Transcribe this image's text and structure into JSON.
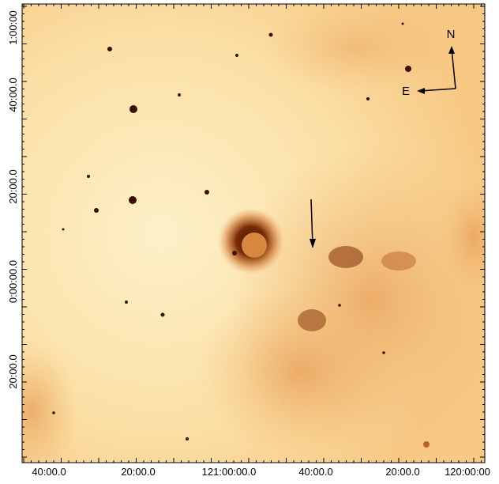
{
  "x_axis": {
    "labels": [
      "40:00.0",
      "20:00.0",
      "121:00:00.0",
      "40:00.0",
      "20:00.0",
      "120:00:00"
    ]
  },
  "y_axis": {
    "labels": [
      "1:00:00",
      "40:00.0",
      "20:00.0",
      "0:00:00.0",
      "20:00.0"
    ]
  },
  "compass": {
    "north": "N",
    "east": "E"
  }
}
